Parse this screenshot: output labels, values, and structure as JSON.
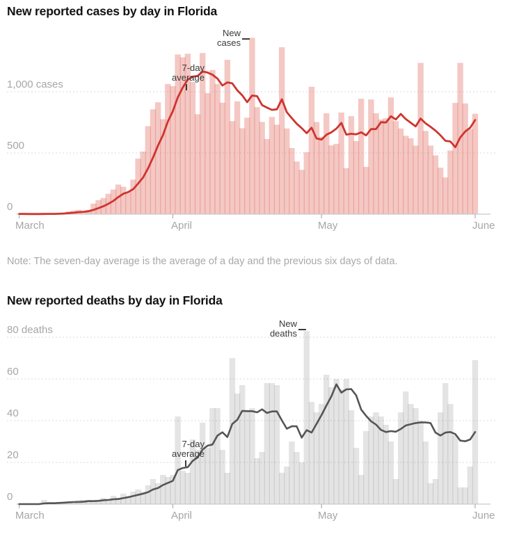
{
  "page": {
    "background": "#ffffff"
  },
  "note": "Note: The seven-day average is the average of a day and the previous six days of data.",
  "chart_data": [
    {
      "id": "cases",
      "type": "bar",
      "title": "New reported cases by day in Florida",
      "x_start": "March 1",
      "x_end": "June 1",
      "ylim": [
        0,
        1500
      ],
      "grid": "dashed horizontal",
      "y_axis": {
        "labels": [
          {
            "value": 1000,
            "label": "1,000 cases"
          },
          {
            "value": 500,
            "label": "500"
          },
          {
            "value": 0,
            "label": "0"
          }
        ]
      },
      "x_axis": {
        "months": [
          {
            "label": "March",
            "day_index": 0
          },
          {
            "label": "April",
            "day_index": 31
          },
          {
            "label": "May",
            "day_index": 61
          },
          {
            "label": "June",
            "day_index": 92
          }
        ]
      },
      "series": [
        {
          "name": "New cases",
          "type": "bar",
          "color": "#e06057",
          "opacity": 0.35,
          "values": [
            2,
            1,
            0,
            2,
            2,
            4,
            5,
            3,
            6,
            15,
            23,
            29,
            35,
            23,
            35,
            86,
            115,
            132,
            167,
            201,
            242,
            224,
            184,
            282,
            454,
            512,
            719,
            857,
            914,
            776,
            1064,
            1046,
            1305,
            1282,
            1311,
            1081,
            816,
            1317,
            989,
            1178,
            1064,
            911,
            1261,
            760,
            922,
            702,
            788,
            1441,
            874,
            754,
            614,
            794,
            731,
            1364,
            700,
            540,
            430,
            362,
            506,
            1041,
            753,
            632,
            824,
            562,
            575,
            830,
            375,
            801,
            597,
            943,
            386,
            937,
            824,
            773,
            784,
            954,
            760,
            700,
            640,
            620,
            560,
            1236,
            680,
            560,
            480,
            380,
            300,
            520,
            909,
            1236,
            905,
            696,
            820
          ]
        },
        {
          "name": "7-day average",
          "type": "line",
          "color": "#ce342e",
          "derived": "rolling mean of a day and previous six days"
        }
      ],
      "annotations": [
        {
          "line1": "New",
          "line2": "cases"
        },
        {
          "line1": "7-day",
          "line2": "average"
        }
      ]
    },
    {
      "id": "deaths",
      "type": "bar",
      "title": "New reported deaths by day in Florida",
      "x_start": "March 1",
      "x_end": "June 1",
      "ylim": [
        0,
        90
      ],
      "grid": "dashed horizontal",
      "y_axis": {
        "labels": [
          {
            "value": 80,
            "label": "80 deaths"
          },
          {
            "value": 60,
            "label": "60"
          },
          {
            "value": 40,
            "label": "40"
          },
          {
            "value": 20,
            "label": "20"
          },
          {
            "value": 0,
            "label": "0"
          }
        ]
      },
      "x_axis": {
        "months": [
          {
            "label": "March",
            "day_index": 0
          },
          {
            "label": "April",
            "day_index": 31
          },
          {
            "label": "May",
            "day_index": 61
          },
          {
            "label": "June",
            "day_index": 92
          }
        ]
      },
      "series": [
        {
          "name": "New deaths",
          "type": "bar",
          "color": "#6b6b6b",
          "opacity": 0.18,
          "values": [
            0,
            0,
            0,
            0,
            0,
            2,
            1,
            0,
            1,
            1,
            1,
            1,
            2,
            2,
            2,
            1,
            2,
            3,
            2,
            4,
            3,
            5,
            4,
            6,
            7,
            6,
            9,
            12,
            10,
            14,
            13,
            14,
            42,
            16,
            15,
            31,
            26,
            39,
            27,
            46,
            46,
            26,
            15,
            70,
            53,
            57,
            45,
            46,
            22,
            25,
            58,
            58,
            57,
            15,
            18,
            30,
            25,
            20,
            83,
            49,
            44,
            48,
            62,
            56,
            60,
            55,
            60,
            45,
            27,
            14,
            35,
            42,
            44,
            42,
            38,
            30,
            12,
            44,
            54,
            48,
            46,
            40,
            30,
            10,
            12,
            44,
            58,
            48,
            33,
            8,
            8,
            18,
            69
          ]
        },
        {
          "name": "7-day average",
          "type": "line",
          "color": "#555555",
          "derived": "rolling mean of a day and previous six days"
        }
      ],
      "annotations": [
        {
          "line1": "New",
          "line2": "deaths"
        },
        {
          "line1": "7-day",
          "line2": "average"
        }
      ]
    }
  ]
}
